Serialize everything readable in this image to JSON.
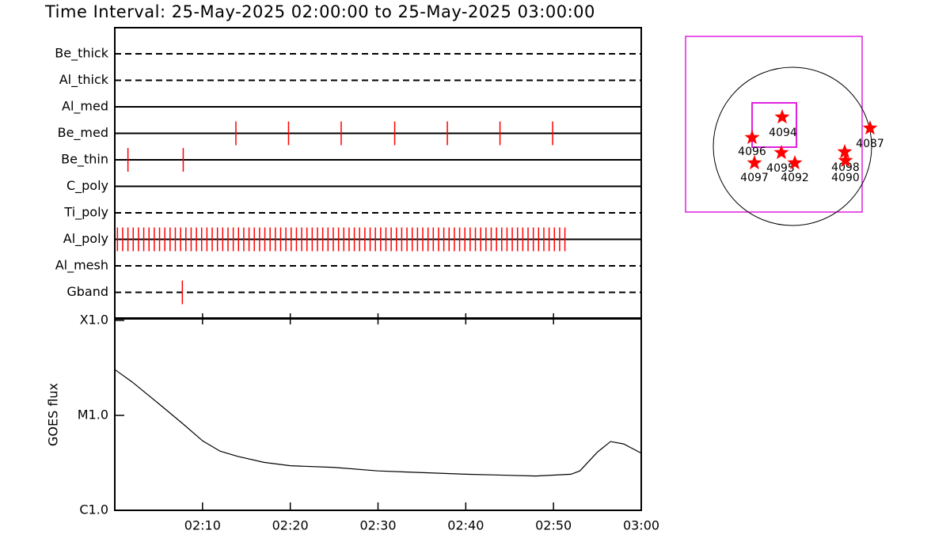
{
  "chart_data": [
    {
      "type": "timeline",
      "title": "Time Interval: 25-May-2025 02:00:00 to 25-May-2025 03:00:00",
      "xlim": [
        0,
        60
      ],
      "series": [
        {
          "name": "Be_thick",
          "line": "dashed",
          "color": "#ff0000",
          "values": []
        },
        {
          "name": "Al_thick",
          "line": "dashed",
          "color": "#ff0000",
          "values": []
        },
        {
          "name": "Al_med",
          "line": "solid",
          "color": "#ff0000",
          "values": []
        },
        {
          "name": "Be_med",
          "line": "solid",
          "color": "#ff0000",
          "values": [
            13.8,
            19.8,
            25.8,
            31.9,
            37.9,
            43.9,
            49.9
          ]
        },
        {
          "name": "Be_thin",
          "line": "solid",
          "color": "#ff0000",
          "values": [
            1.5,
            7.8
          ]
        },
        {
          "name": "C_poly",
          "line": "solid",
          "color": "#ff0000",
          "values": []
        },
        {
          "name": "Ti_poly",
          "line": "dashed",
          "color": "#ff0000",
          "values": []
        },
        {
          "name": "Al_poly",
          "line": "solid",
          "color": "#ff0000",
          "values": [
            0.3,
            0.9,
            1.5,
            2.1,
            2.7,
            3.3,
            3.9,
            4.5,
            5.1,
            5.7,
            6.3,
            6.9,
            7.5,
            8.1,
            8.7,
            9.3,
            9.9,
            10.5,
            11.1,
            11.7,
            12.3,
            12.9,
            13.5,
            14.1,
            14.7,
            15.3,
            15.9,
            16.5,
            17.1,
            17.7,
            18.3,
            18.9,
            19.5,
            20.1,
            20.7,
            21.3,
            21.9,
            22.5,
            23.1,
            23.7,
            24.3,
            24.9,
            25.5,
            26.1,
            26.7,
            27.3,
            27.9,
            28.5,
            29.1,
            29.7,
            30.3,
            30.9,
            31.5,
            32.1,
            32.7,
            33.3,
            33.9,
            34.5,
            35.1,
            35.7,
            36.3,
            36.9,
            37.5,
            38.1,
            38.7,
            39.3,
            39.9,
            40.5,
            41.1,
            41.7,
            42.3,
            42.9,
            43.5,
            44.1,
            44.7,
            45.3,
            45.9,
            46.5,
            47.1,
            47.7,
            48.3,
            48.9,
            49.5,
            50.1,
            50.7,
            51.3
          ]
        },
        {
          "name": "Al_mesh",
          "line": "dashed",
          "color": "#ff0000",
          "values": []
        },
        {
          "name": "Gband",
          "line": "dashed",
          "color": "#ff0000",
          "values": [
            7.7
          ]
        }
      ]
    },
    {
      "type": "line",
      "ylabel": "GOES flux",
      "log_scale": true,
      "color": "#000000",
      "xlim": [
        0,
        60
      ],
      "xticks": [
        {
          "value": 10,
          "label": "02:10"
        },
        {
          "value": 20,
          "label": "02:20"
        },
        {
          "value": 30,
          "label": "02:30"
        },
        {
          "value": 40,
          "label": "02:40"
        },
        {
          "value": 50,
          "label": "02:50"
        },
        {
          "value": 60,
          "label": "03:00"
        }
      ],
      "ylim": [
        1e-06,
        0.0001
      ],
      "yticks": [
        {
          "value": 1e-06,
          "label": "C1.0"
        },
        {
          "value": 1e-05,
          "label": "M1.0"
        },
        {
          "value": 0.0001,
          "label": "X1.0"
        }
      ],
      "x": [
        0,
        2,
        5,
        7.8,
        10,
        12,
        14,
        17,
        20,
        25,
        30,
        40,
        48,
        52,
        53,
        55,
        56.5,
        58,
        60
      ],
      "values": [
        3.04e-05,
        2.24e-05,
        1.33e-05,
        8.1e-06,
        5.4e-06,
        4.2e-06,
        3.7e-06,
        3.2e-06,
        2.95e-06,
        2.83e-06,
        2.6e-06,
        2.4e-06,
        2.3e-06,
        2.4e-06,
        2.6e-06,
        4.1e-06,
        5.3e-06,
        5e-06,
        4e-06
      ]
    }
  ],
  "map": {
    "regions": [
      "4094",
      "4096",
      "4095",
      "4097",
      "4092",
      "4098",
      "4090",
      "4087"
    ]
  }
}
